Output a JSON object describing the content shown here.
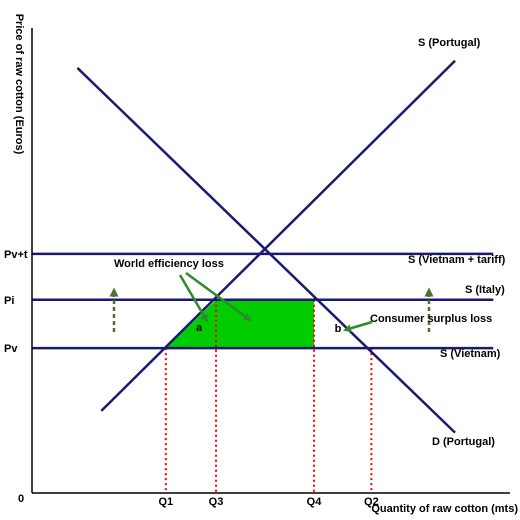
{
  "chart_data": {
    "type": "line",
    "title": "",
    "xlabel": "Quantity of raw cotton (mts)",
    "ylabel": "Price of raw cotton (Euros)",
    "origin_label": "0",
    "xlim": [
      0,
      10
    ],
    "ylim": [
      0,
      10
    ],
    "price_levels": [
      {
        "label": "Pv+t",
        "value": 4.95
      },
      {
        "label": "Pi",
        "value": 4.0
      },
      {
        "label": "Pv",
        "value": 3.0
      }
    ],
    "quantity_levels": [
      {
        "label": "Q1",
        "value": 2.8
      },
      {
        "label": "Q3",
        "value": 3.85
      },
      {
        "label": "Q4",
        "value": 5.9
      },
      {
        "label": "Q2",
        "value": 7.1
      }
    ],
    "series": [
      {
        "name": "S (Portugal)",
        "x": [
          1.45,
          8.85
        ],
        "y": [
          1.7,
          8.95
        ]
      },
      {
        "name": "D (Portugal)",
        "x": [
          0.95,
          8.85
        ],
        "y": [
          8.8,
          1.25
        ]
      },
      {
        "name": "S (Vietnam + tariff)",
        "x": [
          0.0,
          9.65
        ],
        "y": [
          4.95,
          4.95
        ]
      },
      {
        "name": "S (Italy)",
        "x": [
          0.0,
          9.65
        ],
        "y": [
          4.0,
          4.0
        ]
      },
      {
        "name": "S (Vietnam)",
        "x": [
          0.0,
          9.65
        ],
        "y": [
          3.0,
          3.0
        ]
      }
    ],
    "shaded_region": {
      "x": [
        2.8,
        3.85,
        5.9,
        5.9
      ],
      "y": [
        3.0,
        4.0,
        4.0,
        3.0
      ],
      "color": "#00cc00"
    },
    "annotations": [
      {
        "text": "World efficiency loss",
        "x": 2.5,
        "y": 4.55
      },
      {
        "text": "Consumer surplus loss",
        "x": 7.2,
        "y": 3.4
      },
      {
        "text": "a",
        "x": 3.5,
        "y": 3.2
      },
      {
        "text": "b",
        "x": 6.2,
        "y": 3.2
      }
    ],
    "colors": {
      "curves": "#1a1a6e",
      "shade": "#00cc00",
      "arrows": "#2e8b2e",
      "guides": "#ff0000",
      "upward_arrows": "#556b2f"
    }
  }
}
